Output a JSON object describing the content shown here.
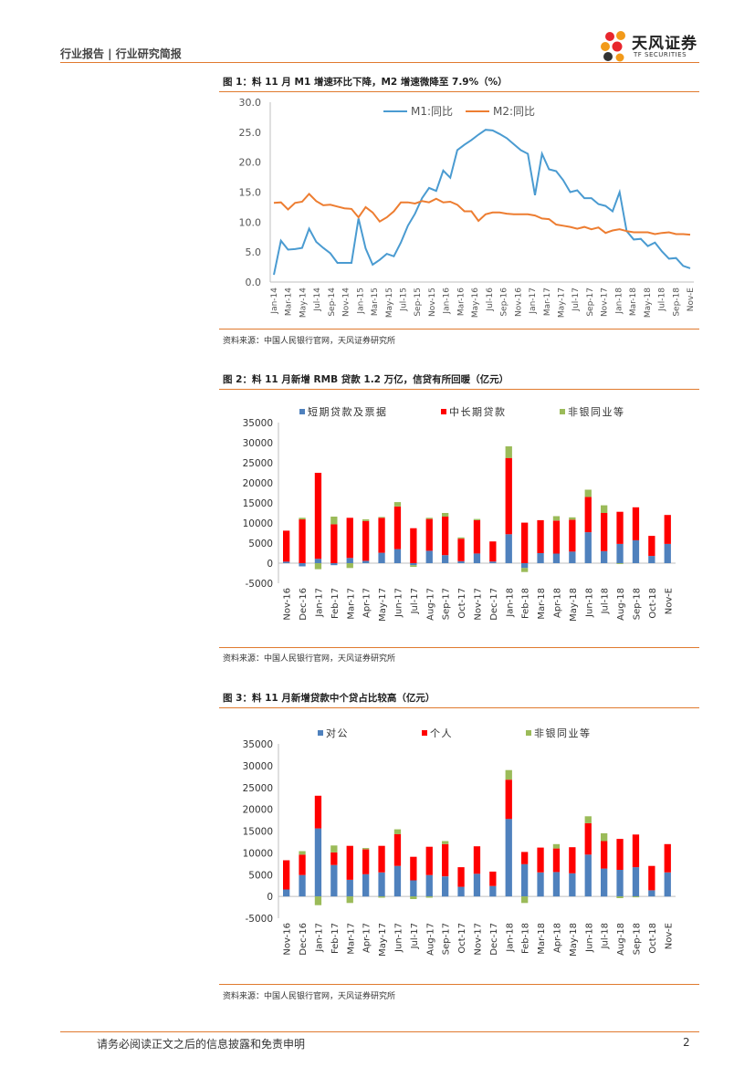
{
  "header": {
    "section": "行业报告 | 行业研究简报",
    "logo_cn": "天风证券",
    "logo_en": "TF SECURITIES"
  },
  "colors": {
    "accent": "#e07a2e",
    "blue": "#4f81bd",
    "red": "#ff0000",
    "green": "#9bbb59",
    "m1": "#4a9bd1",
    "m2": "#ed7d31"
  },
  "figures": [
    {
      "title": "图 1：料 11 月 M1 增速环比下降，M2 增速微降至 7.9%（%）",
      "source": "资料来源：中国人民银行官网，天风证券研究所"
    },
    {
      "title": "图 2：料 11 月新增 RMB 贷款 1.2 万亿，信贷有所回暖（亿元）",
      "source": "资料来源：中国人民银行官网，天风证券研究所"
    },
    {
      "title": "图 3：料 11 月新增贷款中个贷占比较高（亿元）",
      "source": "资料来源：中国人民银行官网，天风证券研究所"
    }
  ],
  "chart_data": [
    {
      "type": "line",
      "ylim": [
        0,
        30
      ],
      "yticks": [
        "0.0",
        "5.0",
        "10.0",
        "15.0",
        "20.0",
        "25.0",
        "30.0"
      ],
      "xticks": [
        "Jan-14",
        "Mar-14",
        "May-14",
        "Jul-14",
        "Sep-14",
        "Nov-14",
        "Jan-15",
        "Mar-15",
        "May-15",
        "Jul-15",
        "Sep-15",
        "Nov-15",
        "Jan-16",
        "Mar-16",
        "May-16",
        "Jul-16",
        "Sep-16",
        "Nov-16",
        "Jan-17",
        "Mar-17",
        "May-17",
        "Jul-17",
        "Sep-17",
        "Nov-17",
        "Jan-18",
        "Mar-18",
        "May-18",
        "Jul-18",
        "Sep-18",
        "Nov-E"
      ],
      "series": [
        {
          "name": "M1:同比",
          "values": [
            1.2,
            6.9,
            5.4,
            5.5,
            5.7,
            8.9,
            6.7,
            5.7,
            4.8,
            3.2,
            3.2,
            3.2,
            10.6,
            5.6,
            2.9,
            3.7,
            4.7,
            4.3,
            6.6,
            9.4,
            11.4,
            14.0,
            15.7,
            15.2,
            18.6,
            17.4,
            22.0,
            22.9,
            23.7,
            24.6,
            25.4,
            25.3,
            24.7,
            24.0,
            23.0,
            22.0,
            21.4,
            14.5,
            21.4,
            18.8,
            18.5,
            17.0,
            15.0,
            15.3,
            14.0,
            14.0,
            13.0,
            12.7,
            11.8,
            15.0,
            8.5,
            7.1,
            7.2,
            6.0,
            6.6,
            5.1,
            3.9,
            4.0,
            2.7,
            2.3
          ],
          "color": "#4a9bd1"
        },
        {
          "name": "M2:同比",
          "values": [
            13.2,
            13.3,
            12.1,
            13.2,
            13.4,
            14.7,
            13.5,
            12.8,
            12.9,
            12.6,
            12.3,
            12.2,
            10.8,
            12.5,
            11.6,
            10.1,
            10.8,
            11.8,
            13.3,
            13.3,
            13.1,
            13.5,
            13.3,
            13.9,
            13.3,
            13.4,
            12.9,
            11.8,
            11.8,
            10.2,
            11.3,
            11.6,
            11.6,
            11.4,
            11.3,
            11.3,
            11.3,
            11.1,
            10.6,
            10.5,
            9.6,
            9.4,
            9.2,
            8.9,
            9.2,
            8.8,
            9.1,
            8.2,
            8.6,
            8.8,
            8.5,
            8.3,
            8.3,
            8.3,
            8.0,
            8.2,
            8.3,
            8.0,
            8.0,
            7.9
          ],
          "color": "#ed7d31"
        }
      ]
    },
    {
      "type": "bar",
      "stacked": true,
      "ylim": [
        -5000,
        35000
      ],
      "yticks": [
        "-5000",
        "0",
        "5000",
        "10000",
        "15000",
        "20000",
        "25000",
        "30000",
        "35000"
      ],
      "categories": [
        "Nov-16",
        "Dec-16",
        "Jan-17",
        "Feb-17",
        "Mar-17",
        "Apr-17",
        "May-17",
        "Jun-17",
        "Jul-17",
        "Aug-17",
        "Sep-17",
        "Oct-17",
        "Nov-17",
        "Dec-17",
        "Jan-18",
        "Feb-18",
        "Mar-18",
        "Apr-18",
        "May-18",
        "Jun-18",
        "Jul-18",
        "Aug-18",
        "Sep-18",
        "Oct-18",
        "Nov-E"
      ],
      "series": [
        {
          "name": "短期贷款及票据",
          "color": "#4f81bd",
          "values": [
            400,
            -800,
            1100,
            -500,
            1300,
            600,
            2600,
            3500,
            -500,
            3100,
            2000,
            500,
            2400,
            400,
            7200,
            -1200,
            2500,
            2400,
            2900,
            7700,
            3000,
            4800,
            5700,
            1800,
            4800
          ]
        },
        {
          "name": "中长期贷款",
          "color": "#ff0000",
          "values": [
            7700,
            10900,
            21400,
            9700,
            10000,
            9900,
            8700,
            10600,
            8700,
            7900,
            9600,
            5600,
            8300,
            5000,
            19000,
            10100,
            8200,
            8200,
            7900,
            8800,
            9500,
            8000,
            8200,
            5000,
            7200
          ]
        },
        {
          "name": "非银同业等",
          "color": "#9bbb59",
          "values": [
            0,
            400,
            -1500,
            1900,
            -1200,
            400,
            200,
            1100,
            -400,
            300,
            900,
            300,
            300,
            0,
            2900,
            -1000,
            0,
            1100,
            600,
            1800,
            1900,
            -200,
            0,
            0,
            0
          ]
        }
      ]
    },
    {
      "type": "bar",
      "stacked": true,
      "ylim": [
        -5000,
        35000
      ],
      "yticks": [
        "-5000",
        "0",
        "5000",
        "10000",
        "15000",
        "20000",
        "25000",
        "30000",
        "35000"
      ],
      "categories": [
        "Nov-16",
        "Dec-16",
        "Jan-17",
        "Feb-17",
        "Mar-17",
        "Apr-17",
        "May-17",
        "Jun-17",
        "Jul-17",
        "Aug-17",
        "Sep-17",
        "Oct-17",
        "Nov-17",
        "Dec-17",
        "Jan-18",
        "Feb-18",
        "Mar-18",
        "Apr-18",
        "May-18",
        "Jun-18",
        "Jul-18",
        "Aug-18",
        "Sep-18",
        "Oct-18",
        "Nov-E"
      ],
      "series": [
        {
          "name": "对公",
          "color": "#4f81bd",
          "values": [
            1600,
            4900,
            15600,
            7200,
            3800,
            5100,
            5500,
            7000,
            3700,
            4900,
            4600,
            2200,
            5200,
            2400,
            17800,
            7400,
            5500,
            5600,
            5300,
            9600,
            6400,
            6100,
            6700,
            1400,
            5500
          ]
        },
        {
          "name": "个人",
          "color": "#ff0000",
          "values": [
            6700,
            4700,
            7500,
            2900,
            7800,
            5700,
            6100,
            7300,
            5400,
            6500,
            7400,
            4500,
            6300,
            3300,
            9000,
            2800,
            5700,
            5400,
            6000,
            7200,
            6300,
            7100,
            7500,
            5600,
            6500
          ]
        },
        {
          "name": "非银同业等",
          "color": "#9bbb59",
          "values": [
            0,
            800,
            -2000,
            1600,
            -1500,
            300,
            -300,
            1100,
            -600,
            -300,
            700,
            0,
            0,
            0,
            2200,
            -1500,
            0,
            1000,
            0,
            1600,
            1800,
            -400,
            -200,
            0,
            0
          ]
        }
      ]
    }
  ],
  "footer": {
    "disclaimer": "请务必阅读正文之后的信息披露和免责申明",
    "page": "2"
  }
}
